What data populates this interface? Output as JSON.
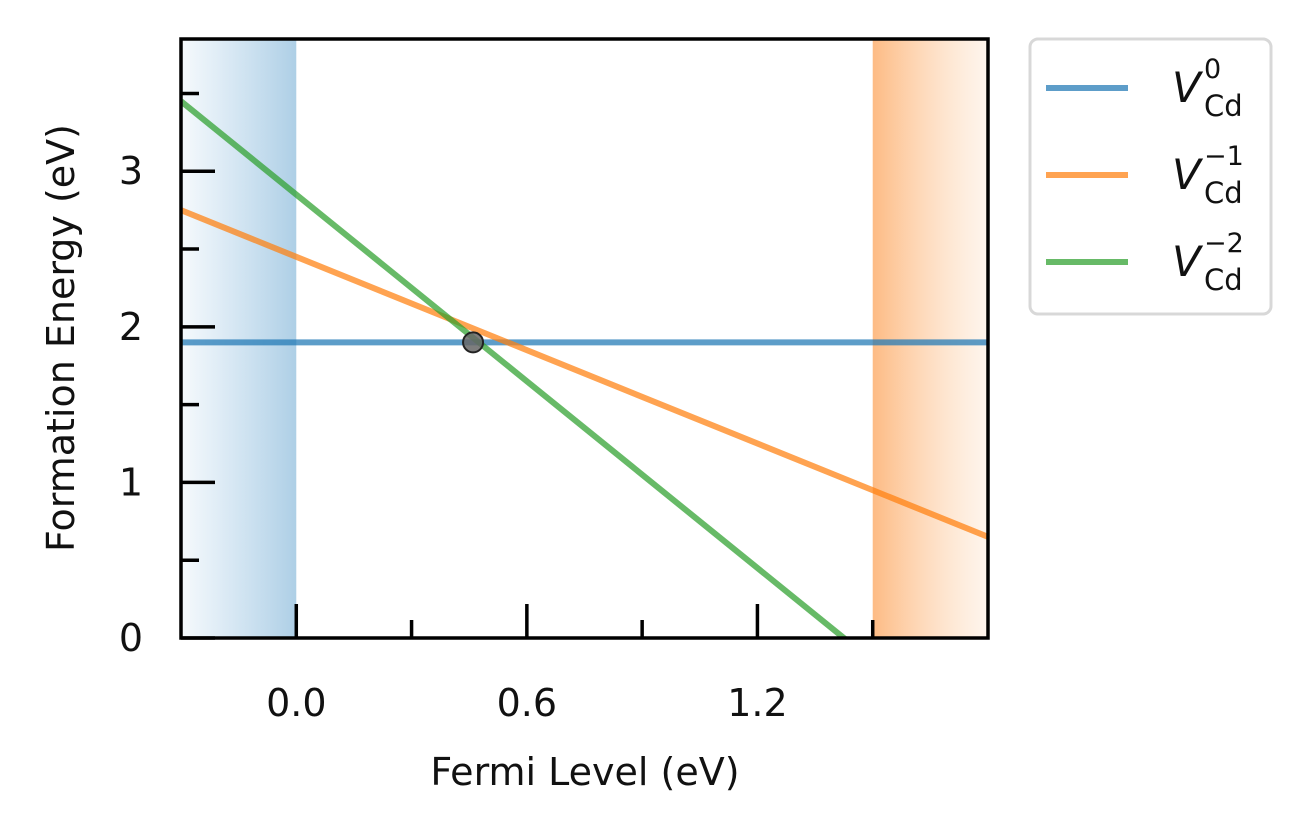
{
  "chart_data": {
    "type": "line",
    "xlabel": "Fermi Level (eV)",
    "ylabel": "Formation Energy (eV)",
    "xlim": [
      -0.3,
      1.8
    ],
    "ylim": [
      0,
      3.85
    ],
    "x_ticks": [
      0.0,
      0.6,
      1.2
    ],
    "x_tick_labels": [
      "0.0",
      "0.6",
      "1.2"
    ],
    "y_ticks": [
      0,
      1,
      2,
      3
    ],
    "y_tick_labels": [
      "0",
      "1",
      "2",
      "3"
    ],
    "valence_band_max": 0.0,
    "conduction_band_min": 1.5,
    "series": [
      {
        "name_base": "V",
        "name_sub": "Cd",
        "name_sup": "0",
        "color": "#1f77b4",
        "charge": 0,
        "energy_at_vbm": 1.9
      },
      {
        "name_base": "V",
        "name_sub": "Cd",
        "name_sup": "−1",
        "color": "#ff7f0e",
        "charge": -1,
        "energy_at_vbm": 2.45
      },
      {
        "name_base": "V",
        "name_sub": "Cd",
        "name_sup": "−2",
        "color": "#2ca02c",
        "charge": -2,
        "energy_at_vbm": 2.85
      }
    ],
    "transition_point": {
      "x": 0.46,
      "y": 1.9
    },
    "grid": false,
    "legend_position": "outside-right"
  }
}
